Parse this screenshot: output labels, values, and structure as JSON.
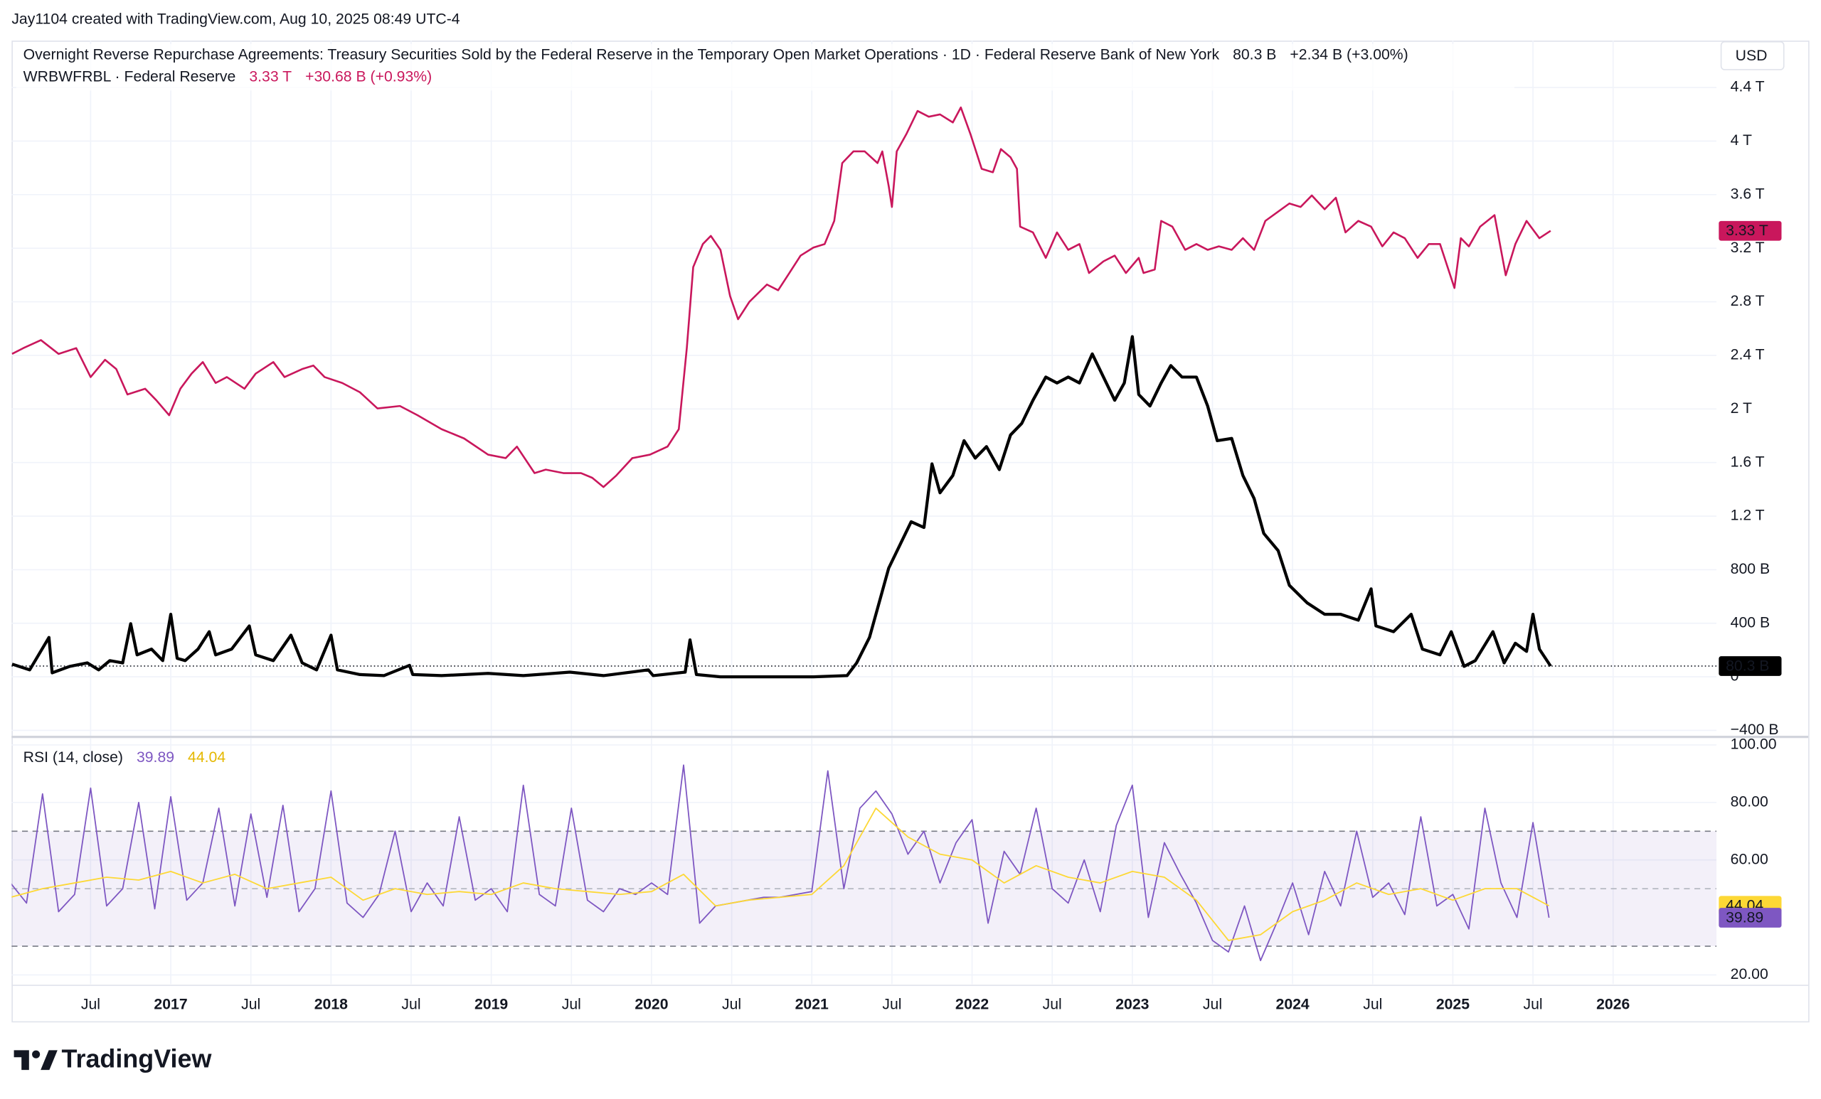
{
  "header": {
    "attribution": "Jay1104 created with TradingView.com, Aug 10, 2025 08:49 UTC-4",
    "logo": "TradingView"
  },
  "chart_data": [
    {
      "type": "line",
      "currency": "USD",
      "grid": true,
      "xlim": [
        2016.007,
        2026.645
      ],
      "xticks": [
        {
          "value": 2016.5,
          "label": "Jul"
        },
        2017,
        {
          "value": 2017.5,
          "label": "Jul"
        },
        2018,
        {
          "value": 2018.5,
          "label": "Jul"
        },
        2019,
        {
          "value": 2019.5,
          "label": "Jul"
        },
        2020,
        {
          "value": 2020.5,
          "label": "Jul"
        },
        2021,
        {
          "value": 2021.5,
          "label": "Jul"
        },
        2022,
        {
          "value": 2022.5,
          "label": "Jul"
        },
        2023,
        {
          "value": 2023.5,
          "label": "Jul"
        },
        2024,
        {
          "value": 2024.5,
          "label": "Jul"
        },
        2025,
        {
          "value": 2025.5,
          "label": "Jul"
        },
        2026
      ],
      "ylim": [
        -440,
        4750
      ],
      "yticks": [
        {
          "value": -400,
          "label": "−400 B"
        },
        0,
        {
          "value": 400,
          "label": "400 B"
        },
        {
          "value": 800,
          "label": "800 B"
        },
        {
          "value": 1200,
          "label": "1.2 T"
        },
        {
          "value": 1600,
          "label": "1.6 T"
        },
        {
          "value": 2000,
          "label": "2 T"
        },
        {
          "value": 2400,
          "label": "2.4 T"
        },
        {
          "value": 2800,
          "label": "2.8 T"
        },
        {
          "value": 3200,
          "label": "3.2 T"
        },
        {
          "value": 3600,
          "label": "3.6 T"
        },
        {
          "value": 4000,
          "label": "4 T"
        },
        {
          "value": 4400,
          "label": "4.4 T"
        }
      ],
      "series": [
        {
          "name": "Overnight Reverse Repurchase Agreements: Treasury Securities Sold by the Federal Reserve in the Temporary Open Market Operations · 1D · Federal Reserve Bank of New York",
          "color": "#000000",
          "last_label": "80.3 B",
          "change": "+2.34 B (+3.00%)",
          "x": [
            2016.01,
            2016.12,
            2016.24,
            2016.26,
            2016.37,
            2016.48,
            2016.55,
            2016.62,
            2016.7,
            2016.75,
            2016.79,
            2016.88,
            2016.95,
            2017.0,
            2017.04,
            2017.09,
            2017.17,
            2017.24,
            2017.28,
            2017.38,
            2017.49,
            2017.53,
            2017.64,
            2017.75,
            2017.82,
            2017.91,
            2018.0,
            2018.04,
            2018.18,
            2018.33,
            2018.49,
            2018.51,
            2018.69,
            2018.98,
            2019.2,
            2019.49,
            2019.7,
            2019.98,
            2020.01,
            2020.21,
            2020.24,
            2020.28,
            2020.43,
            2021.01,
            2021.22,
            2021.28,
            2021.36,
            2021.44,
            2021.48,
            2021.55,
            2021.62,
            2021.7,
            2021.75,
            2021.8,
            2021.88,
            2021.95,
            2022.02,
            2022.09,
            2022.17,
            2022.24,
            2022.31,
            2022.38,
            2022.46,
            2022.53,
            2022.6,
            2022.67,
            2022.75,
            2022.82,
            2022.89,
            2022.95,
            2023.0,
            2023.04,
            2023.11,
            2023.18,
            2023.24,
            2023.31,
            2023.4,
            2023.47,
            2023.53,
            2023.62,
            2023.69,
            2023.76,
            2023.82,
            2023.91,
            2023.98,
            2024.09,
            2024.2,
            2024.3,
            2024.41,
            2024.49,
            2024.52,
            2024.63,
            2024.74,
            2024.81,
            2024.92,
            2024.99,
            2025.07,
            2025.14,
            2025.25,
            2025.32,
            2025.39,
            2025.46,
            2025.5,
            2025.54,
            2025.61
          ],
          "values": [
            95,
            52,
            294,
            30,
            78,
            104,
            52,
            121,
            104,
            397,
            164,
            207,
            121,
            467,
            138,
            121,
            207,
            337,
            164,
            207,
            380,
            164,
            121,
            311,
            104,
            52,
            311,
            52,
            17,
            9,
            86,
            17,
            9,
            26,
            9,
            35,
            9,
            52,
            9,
            35,
            276,
            17,
            0,
            0,
            9,
            104,
            294,
            639,
            812,
            985,
            1158,
            1115,
            1590,
            1374,
            1503,
            1763,
            1633,
            1719,
            1547,
            1806,
            1892,
            2065,
            2238,
            2194,
            2238,
            2194,
            2411,
            2238,
            2065,
            2194,
            2540,
            2108,
            2022,
            2194,
            2324,
            2238,
            2238,
            2022,
            1763,
            1780,
            1503,
            1331,
            1071,
            942,
            683,
            553,
            467,
            467,
            423,
            657,
            380,
            337,
            467,
            207,
            164,
            337,
            78,
            121,
            337,
            104,
            251,
            190,
            467,
            207,
            80.3
          ]
        },
        {
          "name": "WRBWFRBL · Federal Reserve",
          "color": "#c9175c",
          "last_label": "3.33 T",
          "change": "+30.68 B (+0.93%)",
          "x": [
            2016.01,
            2016.08,
            2016.19,
            2016.3,
            2016.41,
            2016.5,
            2016.59,
            2016.66,
            2016.73,
            2016.84,
            2016.91,
            2016.99,
            2017.06,
            2017.13,
            2017.2,
            2017.28,
            2017.35,
            2017.46,
            2017.53,
            2017.64,
            2017.71,
            2017.82,
            2017.89,
            2017.96,
            2018.07,
            2018.18,
            2018.29,
            2018.43,
            2018.54,
            2018.69,
            2018.83,
            2018.98,
            2019.09,
            2019.16,
            2019.27,
            2019.34,
            2019.45,
            2019.56,
            2019.63,
            2019.7,
            2019.78,
            2019.88,
            2019.99,
            2020.1,
            2020.17,
            2020.22,
            2020.26,
            2020.32,
            2020.37,
            2020.43,
            2020.49,
            2020.54,
            2020.61,
            2020.72,
            2020.79,
            2020.86,
            2020.93,
            2021.01,
            2021.08,
            2021.14,
            2021.19,
            2021.26,
            2021.33,
            2021.41,
            2021.44,
            2021.48,
            2021.5,
            2021.53,
            2021.59,
            2021.66,
            2021.73,
            2021.8,
            2021.88,
            2021.93,
            2021.99,
            2022.06,
            2022.13,
            2022.18,
            2022.24,
            2022.28,
            2022.3,
            2022.38,
            2022.46,
            2022.53,
            2022.6,
            2022.67,
            2022.73,
            2022.82,
            2022.89,
            2022.96,
            2023.04,
            2023.07,
            2023.14,
            2023.18,
            2023.25,
            2023.33,
            2023.4,
            2023.47,
            2023.54,
            2023.62,
            2023.69,
            2023.76,
            2023.83,
            2023.91,
            2023.98,
            2024.05,
            2024.12,
            2024.2,
            2024.27,
            2024.33,
            2024.41,
            2024.49,
            2024.56,
            2024.63,
            2024.7,
            2024.78,
            2024.85,
            2024.92,
            2025.01,
            2025.05,
            2025.1,
            2025.17,
            2025.26,
            2025.33,
            2025.39,
            2025.46,
            2025.54,
            2025.61
          ],
          "values": [
            2411,
            2454,
            2514,
            2411,
            2454,
            2238,
            2367,
            2298,
            2108,
            2151,
            2065,
            1953,
            2151,
            2264,
            2350,
            2194,
            2238,
            2151,
            2264,
            2350,
            2238,
            2298,
            2324,
            2238,
            2194,
            2125,
            2004,
            2022,
            1953,
            1849,
            1780,
            1659,
            1633,
            1719,
            1521,
            1547,
            1521,
            1521,
            1486,
            1417,
            1503,
            1633,
            1659,
            1719,
            1849,
            2454,
            3059,
            3231,
            3292,
            3188,
            2843,
            2670,
            2799,
            2929,
            2886,
            3015,
            3145,
            3205,
            3231,
            3404,
            3836,
            3923,
            3923,
            3836,
            3923,
            3663,
            3508,
            3923,
            4052,
            4225,
            4182,
            4199,
            4139,
            4251,
            4052,
            3793,
            3767,
            3940,
            3879,
            3793,
            3361,
            3318,
            3128,
            3318,
            3188,
            3231,
            3015,
            3102,
            3145,
            3015,
            3128,
            3015,
            3041,
            3404,
            3361,
            3188,
            3231,
            3188,
            3214,
            3188,
            3275,
            3188,
            3404,
            3473,
            3534,
            3508,
            3594,
            3491,
            3577,
            3318,
            3404,
            3361,
            3214,
            3318,
            3275,
            3128,
            3231,
            3231,
            2903,
            3275,
            3214,
            3361,
            3447,
            2998,
            3231,
            3404,
            3275,
            3330
          ]
        }
      ]
    },
    {
      "type": "line",
      "title": "RSI (14, close)",
      "ylim": [
        16.8,
        102.4
      ],
      "yticks": [
        {
          "value": 20,
          "label": "20.00"
        },
        {
          "value": 60,
          "label": "60.00"
        },
        {
          "value": 80,
          "label": "80.00"
        },
        {
          "value": 100,
          "label": "100.00"
        }
      ],
      "bands": [
        70,
        50,
        30
      ],
      "band_color": "#7e57c2",
      "series": [
        {
          "color": "#7e57c2",
          "x": [
            2016.0,
            2016.1,
            2016.2,
            2016.3,
            2016.4,
            2016.5,
            2016.6,
            2016.7,
            2016.8,
            2016.9,
            2017.0,
            2017.1,
            2017.2,
            2017.3,
            2017.4,
            2017.5,
            2017.6,
            2017.7,
            2017.8,
            2017.9,
            2018.0,
            2018.1,
            2018.2,
            2018.3,
            2018.4,
            2018.5,
            2018.6,
            2018.7,
            2018.8,
            2018.9,
            2019.0,
            2019.1,
            2019.2,
            2019.3,
            2019.4,
            2019.5,
            2019.6,
            2019.7,
            2019.8,
            2019.9,
            2020.0,
            2020.1,
            2020.2,
            2020.3,
            2020.4,
            2020.5,
            2020.6,
            2020.7,
            2020.8,
            2020.9,
            2021.0,
            2021.1,
            2021.2,
            2021.3,
            2021.4,
            2021.5,
            2021.6,
            2021.7,
            2021.8,
            2021.9,
            2022.0,
            2022.1,
            2022.2,
            2022.3,
            2022.4,
            2022.5,
            2022.6,
            2022.7,
            2022.8,
            2022.9,
            2023.0,
            2023.1,
            2023.2,
            2023.3,
            2023.4,
            2023.5,
            2023.6,
            2023.7,
            2023.8,
            2023.9,
            2024.0,
            2024.1,
            2024.2,
            2024.3,
            2024.4,
            2024.5,
            2024.6,
            2024.7,
            2024.8,
            2024.9,
            2025.0,
            2025.1,
            2025.2,
            2025.3,
            2025.4,
            2025.5,
            2025.6
          ],
          "values": [
            52,
            45,
            83,
            42,
            48,
            85,
            44,
            50,
            80,
            43,
            82,
            46,
            52,
            78,
            44,
            76,
            47,
            79,
            42,
            50,
            84,
            45,
            40,
            48,
            70,
            42,
            52,
            44,
            75,
            46,
            50,
            42,
            86,
            48,
            44,
            78,
            46,
            42,
            50,
            48,
            52,
            48,
            93,
            38,
            44,
            45,
            46,
            47,
            47,
            48,
            49,
            91,
            50,
            78,
            84,
            76,
            62,
            70,
            52,
            66,
            74,
            38,
            63,
            55,
            78,
            50,
            45,
            60,
            42,
            72,
            86,
            40,
            66,
            55,
            45,
            32,
            28,
            44,
            25,
            38,
            52,
            34,
            56,
            44,
            70,
            47,
            52,
            41,
            75,
            44,
            48,
            36,
            78,
            52,
            40,
            73,
            39.89
          ]
        },
        {
          "color": "#fdd835",
          "x": [
            2016.0,
            2016.2,
            2016.4,
            2016.6,
            2016.8,
            2017.0,
            2017.2,
            2017.4,
            2017.6,
            2017.8,
            2018.0,
            2018.2,
            2018.4,
            2018.6,
            2018.8,
            2019.0,
            2019.2,
            2019.4,
            2019.6,
            2019.8,
            2020.0,
            2020.2,
            2020.4,
            2020.6,
            2020.8,
            2021.0,
            2021.2,
            2021.4,
            2021.6,
            2021.8,
            2022.0,
            2022.2,
            2022.4,
            2022.6,
            2022.8,
            2023.0,
            2023.2,
            2023.4,
            2023.6,
            2023.8,
            2024.0,
            2024.2,
            2024.4,
            2024.6,
            2024.8,
            2025.0,
            2025.2,
            2025.4,
            2025.6
          ],
          "values": [
            47,
            50,
            52,
            54,
            53,
            56,
            52,
            55,
            50,
            52,
            54,
            46,
            50,
            48,
            49,
            48,
            52,
            50,
            49,
            48,
            49,
            55,
            44,
            46,
            47,
            48,
            58,
            78,
            68,
            62,
            60,
            52,
            58,
            54,
            52,
            56,
            54,
            46,
            32,
            34,
            42,
            46,
            52,
            48,
            50,
            46,
            50,
            50,
            44.04
          ]
        }
      ]
    }
  ]
}
